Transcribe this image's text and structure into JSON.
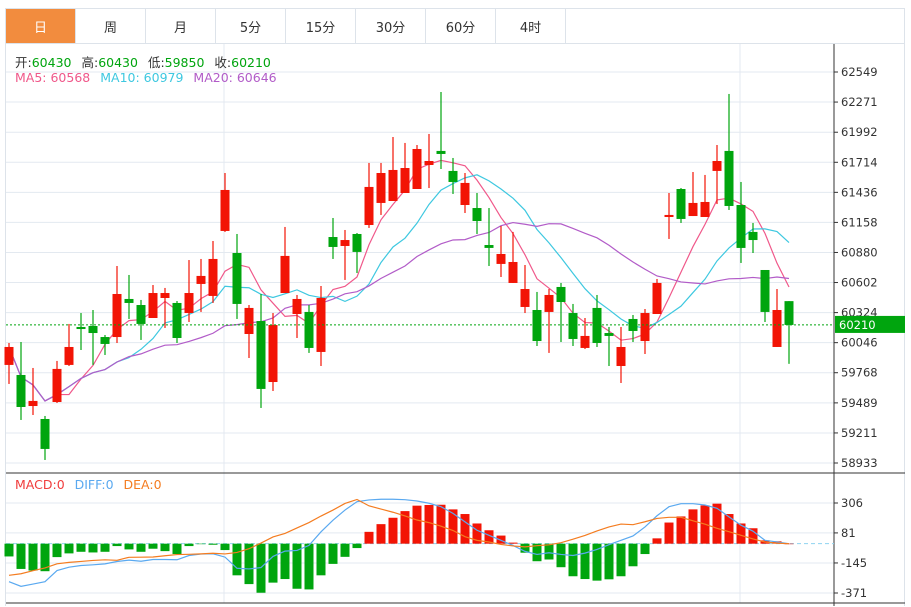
{
  "tabs": [
    {
      "label": "日",
      "active": true
    },
    {
      "label": "周"
    },
    {
      "label": "月"
    },
    {
      "label": "5分"
    },
    {
      "label": "15分"
    },
    {
      "label": "30分"
    },
    {
      "label": "60分"
    },
    {
      "label": "4时"
    }
  ],
  "ohlc_info": {
    "open_label": "开:",
    "open": "60430",
    "high_label": "高:",
    "high": "60430",
    "low_label": "低:",
    "low": "59850",
    "close_label": "收:",
    "close": "60210"
  },
  "ma_info": {
    "ma5_label": "MA5: ",
    "ma5": "60568",
    "ma10_label": "MA10: ",
    "ma10": "60979",
    "ma20_label": "MA20: ",
    "ma20": "60646"
  },
  "macd_info": {
    "macd_label": "MACD:",
    "macd": "0",
    "diff_label": "DIFF:",
    "diff": "0",
    "dea_label": "DEA:",
    "dea": "0"
  },
  "colors": {
    "up": "#f21405",
    "down": "#00a50e",
    "ma5": "#f0588a",
    "ma10": "#3ec8e0",
    "ma20": "#b25cc8",
    "diff": "#5aa9f0",
    "dea": "#f47c20",
    "active_tab": "#f28c3e",
    "grid": "#e3e9f0"
  },
  "chart_data": {
    "type": "candlestick",
    "price_axis_ticks": [
      62549,
      62271,
      61992,
      61714,
      61436,
      61158,
      60880,
      60602,
      60324,
      60046,
      59768,
      59489,
      59211,
      58933
    ],
    "price_range": [
      58933,
      62549
    ],
    "current_price": "60210",
    "macd_axis_ticks": [
      306,
      81,
      -145,
      -371
    ],
    "macd_range": [
      -371,
      306
    ],
    "candles": [
      [
        59840,
        60043,
        59664,
        60006
      ],
      [
        59747,
        60052,
        59331,
        59451
      ],
      [
        59460,
        59812,
        59377,
        59507
      ],
      [
        59340,
        59368,
        58961,
        59063
      ],
      [
        59497,
        59877,
        59488,
        59803
      ],
      [
        59840,
        60219,
        59830,
        60006
      ],
      [
        60191,
        60320,
        59978,
        60172
      ],
      [
        60200,
        60348,
        59840,
        60135
      ],
      [
        60098,
        60117,
        59932,
        60034
      ],
      [
        60098,
        60755,
        60043,
        60496
      ],
      [
        60450,
        60672,
        60265,
        60413
      ],
      [
        60394,
        60441,
        60071,
        60219
      ],
      [
        60274,
        60579,
        60274,
        60505
      ],
      [
        60459,
        60552,
        60182,
        60505
      ],
      [
        60413,
        60431,
        60043,
        60089
      ],
      [
        60320,
        60810,
        60237,
        60505
      ],
      [
        60589,
        60820,
        60330,
        60663
      ],
      [
        60478,
        60986,
        60413,
        60820
      ],
      [
        61079,
        61615,
        61070,
        61458
      ],
      [
        60875,
        61051,
        60265,
        60404
      ],
      [
        60126,
        60394,
        59904,
        60367
      ],
      [
        60246,
        60496,
        59442,
        59618
      ],
      [
        59682,
        60320,
        59599,
        60209
      ],
      [
        60505,
        61116,
        60505,
        60848
      ],
      [
        60311,
        60487,
        60089,
        60450
      ],
      [
        60330,
        60394,
        59951,
        59997
      ],
      [
        59960,
        60570,
        59830,
        60459
      ],
      [
        61023,
        61199,
        60820,
        60931
      ],
      [
        60940,
        61088,
        60626,
        60995
      ],
      [
        61051,
        61060,
        60690,
        60885
      ],
      [
        61134,
        61708,
        61107,
        61486
      ],
      [
        61338,
        61708,
        61227,
        61615
      ],
      [
        61356,
        61948,
        61356,
        61643
      ],
      [
        61430,
        61893,
        61430,
        61661
      ],
      [
        61467,
        61874,
        61467,
        61837
      ],
      [
        61689,
        61976,
        61476,
        61726
      ],
      [
        61819,
        62364,
        61652,
        61791
      ],
      [
        61634,
        61754,
        61421,
        61532
      ],
      [
        61319,
        61615,
        61245,
        61523
      ],
      [
        61291,
        61430,
        61051,
        61171
      ],
      [
        60949,
        61291,
        60755,
        60922
      ],
      [
        60774,
        61125,
        60653,
        60866
      ],
      [
        60598,
        61070,
        60598,
        60792
      ],
      [
        60376,
        60764,
        60320,
        60542
      ],
      [
        60348,
        60515,
        60015,
        60061
      ],
      [
        60330,
        60542,
        59951,
        60487
      ],
      [
        60561,
        60598,
        60052,
        60422
      ],
      [
        60320,
        60404,
        60015,
        60080
      ],
      [
        59997,
        60274,
        59987,
        60108
      ],
      [
        60367,
        60487,
        60006,
        60043
      ],
      [
        60135,
        60191,
        59830,
        60108
      ],
      [
        59830,
        60191,
        59673,
        60006
      ],
      [
        60265,
        60302,
        60052,
        60154
      ],
      [
        60061,
        60357,
        59941,
        60320
      ],
      [
        60311,
        60635,
        60311,
        60598
      ],
      [
        61208,
        61430,
        61005,
        61227
      ],
      [
        61467,
        61476,
        61153,
        61190
      ],
      [
        61217,
        61624,
        61217,
        61338
      ],
      [
        61208,
        61597,
        61208,
        61347
      ],
      [
        61634,
        61874,
        61328,
        61726
      ],
      [
        61819,
        62346,
        61273,
        61310
      ],
      [
        61319,
        61532,
        60783,
        60922
      ],
      [
        61070,
        61153,
        60875,
        60995
      ],
      [
        60718,
        60718,
        60237,
        60330
      ],
      [
        60006,
        60542,
        60006,
        60348
      ],
      [
        60430,
        60430,
        59850,
        60210
      ]
    ],
    "macd_hist": [
      -96,
      -190,
      -202,
      -207,
      -101,
      -73,
      -61,
      -66,
      -61,
      -18,
      -43,
      -61,
      -38,
      -56,
      -78,
      -18,
      -3,
      -8,
      -48,
      -238,
      -304,
      -369,
      -293,
      -266,
      -339,
      -344,
      -238,
      -152,
      -99,
      -33,
      89,
      147,
      195,
      245,
      286,
      291,
      293,
      258,
      223,
      152,
      101,
      61,
      8,
      -68,
      -132,
      -119,
      -177,
      -245,
      -266,
      -278,
      -268,
      -245,
      -170,
      -78,
      40,
      159,
      205,
      258,
      288,
      301,
      223,
      152,
      116,
      25,
      18,
      0
    ],
    "diff": [
      -286,
      -321,
      -304,
      -286,
      -202,
      -177,
      -164,
      -159,
      -152,
      -134,
      -124,
      -132,
      -119,
      -119,
      -121,
      -89,
      -78,
      -76,
      -101,
      -185,
      -190,
      -180,
      -96,
      -56,
      -51,
      -13,
      89,
      177,
      253,
      316,
      329,
      334,
      334,
      331,
      321,
      304,
      278,
      228,
      164,
      101,
      63,
      25,
      -13,
      -58,
      -81,
      -68,
      -81,
      -89,
      -71,
      -43,
      -8,
      25,
      58,
      126,
      210,
      278,
      301,
      301,
      291,
      266,
      202,
      139,
      94,
      25,
      13,
      0
    ]
  }
}
